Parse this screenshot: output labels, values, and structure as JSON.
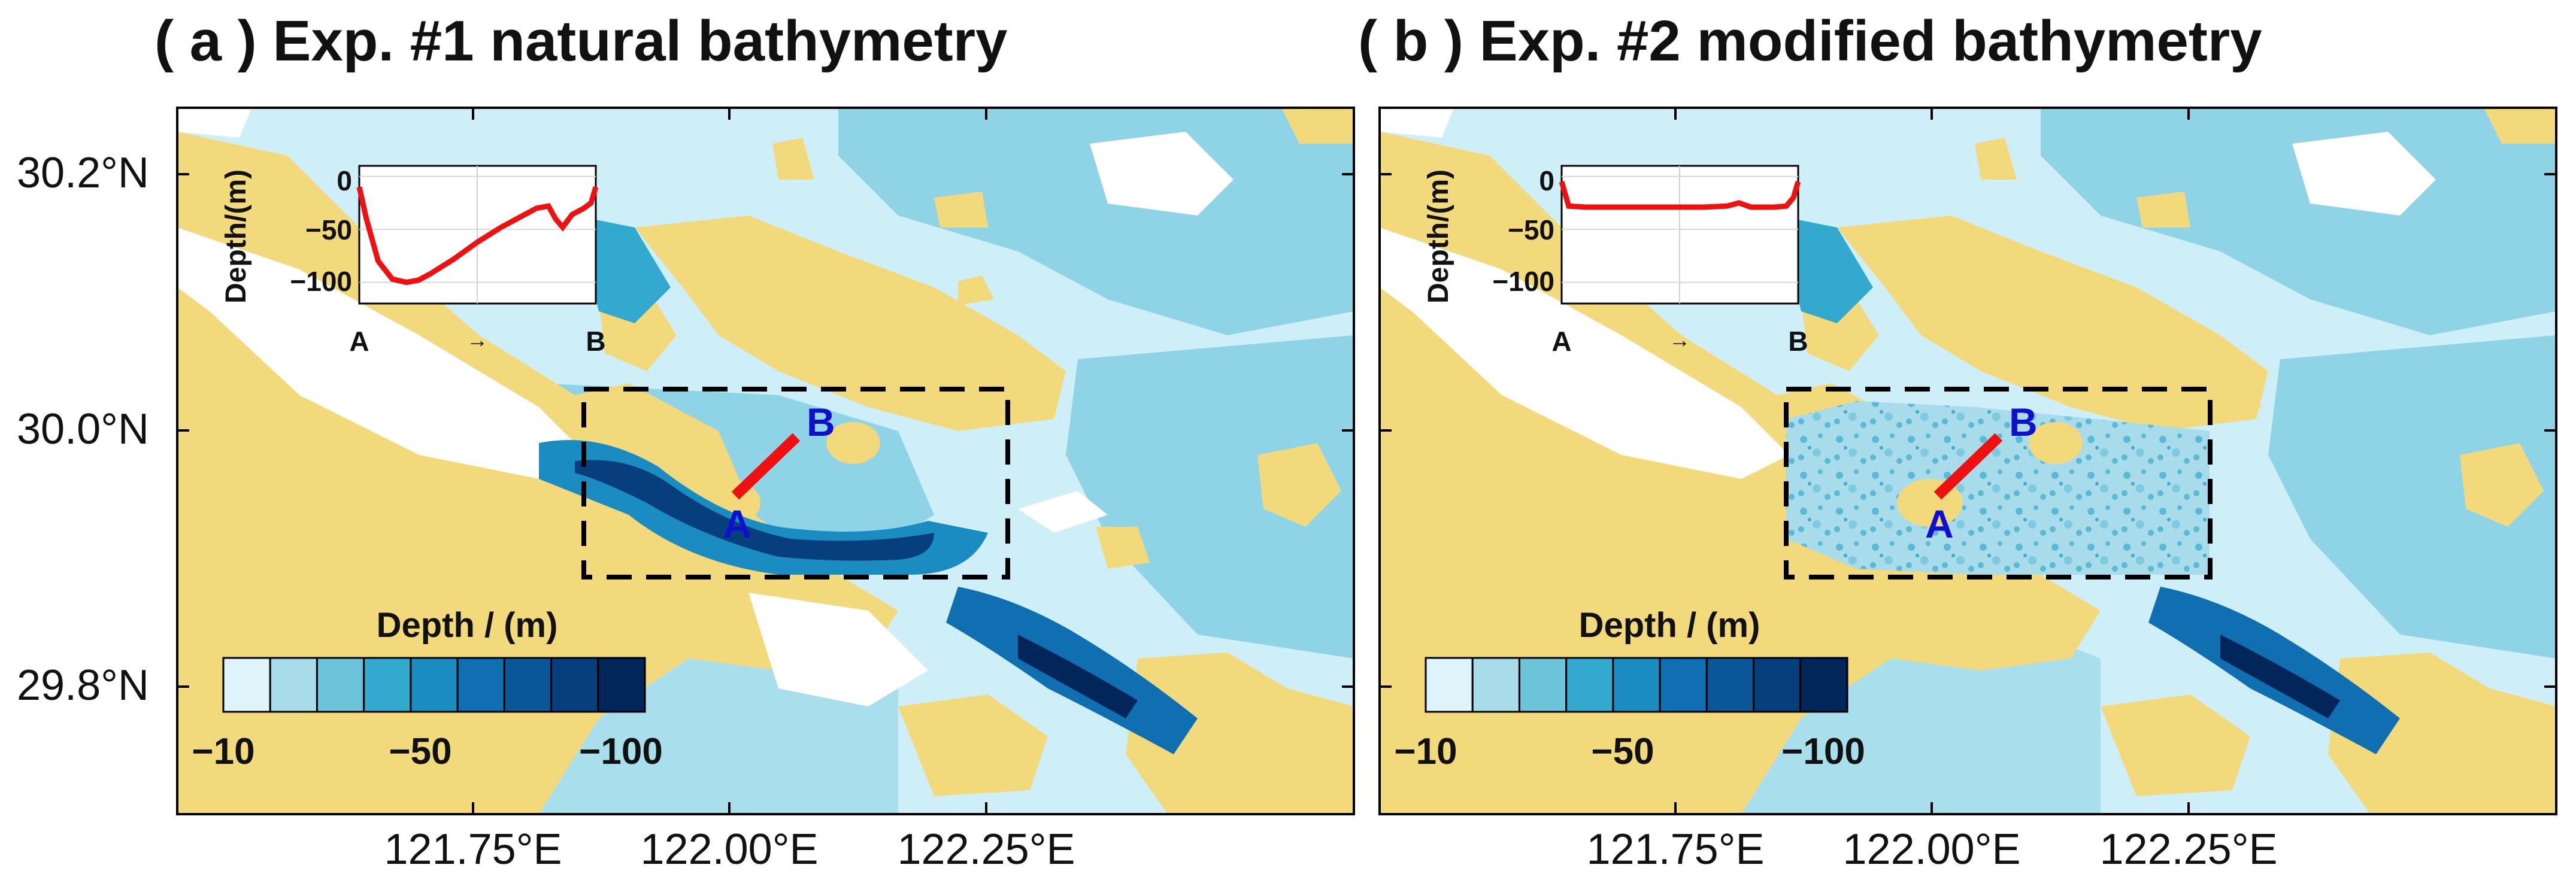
{
  "panels": [
    {
      "title": "( a ) Exp. #1 natural bathymetry",
      "inset": {
        "ylabel": "Depth/(m)",
        "yticks": [
          "0",
          "−50",
          "−100"
        ],
        "start_label": "A",
        "end_label": "B",
        "arrow": "→"
      },
      "points": {
        "a": "A",
        "b": "B"
      },
      "colorbar": {
        "title": "Depth / (m)",
        "ticks": [
          "−10",
          "−50",
          "−100"
        ]
      }
    },
    {
      "title": "( b ) Exp. #2 modified bathymetry",
      "inset": {
        "ylabel": "Depth/(m)",
        "yticks": [
          "0",
          "−50",
          "−100"
        ],
        "start_label": "A",
        "end_label": "B",
        "arrow": "→"
      },
      "points": {
        "a": "A",
        "b": "B"
      },
      "colorbar": {
        "title": "Depth / (m)",
        "ticks": [
          "−10",
          "−50",
          "−100"
        ]
      }
    }
  ],
  "axes": {
    "lat_ticks": [
      "30.2°N",
      "30.0°N",
      "29.8°N"
    ],
    "lon_ticks": [
      "121.75°E",
      "122.00°E",
      "122.25°E"
    ]
  },
  "colors": {
    "land": "#f2d97c",
    "shallow": "#d8f2f8",
    "section_line": "#ee1111",
    "point_label": "#1010cc",
    "colorbar": [
      "#dff4fa",
      "#a8dceb",
      "#6cc3da",
      "#33a9cf",
      "#1a8cc2",
      "#0f6fb0",
      "#0a5699",
      "#063f7c",
      "#03265a"
    ]
  },
  "chart_data": [
    {
      "type": "line",
      "title": "",
      "xlabel": "",
      "ylabel": "Depth/(m)",
      "ylim": [
        -120,
        10
      ],
      "series": [
        {
          "x": [
            0,
            0.03,
            0.08,
            0.14,
            0.2,
            0.25,
            0.3,
            0.4,
            0.5,
            0.6,
            0.7,
            0.75,
            0.8,
            0.83,
            0.86,
            0.9,
            0.95,
            0.98,
            1.0
          ],
          "values": [
            -10,
            -40,
            -80,
            -97,
            -100,
            -98,
            -92,
            -78,
            -62,
            -48,
            -36,
            -30,
            -28,
            -40,
            -48,
            -36,
            -30,
            -25,
            -10
          ]
        }
      ]
    },
    {
      "type": "line",
      "title": "",
      "xlabel": "",
      "ylabel": "Depth/(m)",
      "ylim": [
        -120,
        10
      ],
      "series": [
        {
          "x": [
            0,
            0.03,
            0.1,
            0.2,
            0.3,
            0.4,
            0.5,
            0.6,
            0.7,
            0.75,
            0.8,
            0.85,
            0.9,
            0.95,
            0.98,
            1.0
          ],
          "values": [
            -5,
            -28,
            -29,
            -29,
            -29,
            -29,
            -29,
            -29,
            -28,
            -25,
            -29,
            -29,
            -29,
            -28,
            -20,
            -5
          ]
        }
      ]
    }
  ]
}
